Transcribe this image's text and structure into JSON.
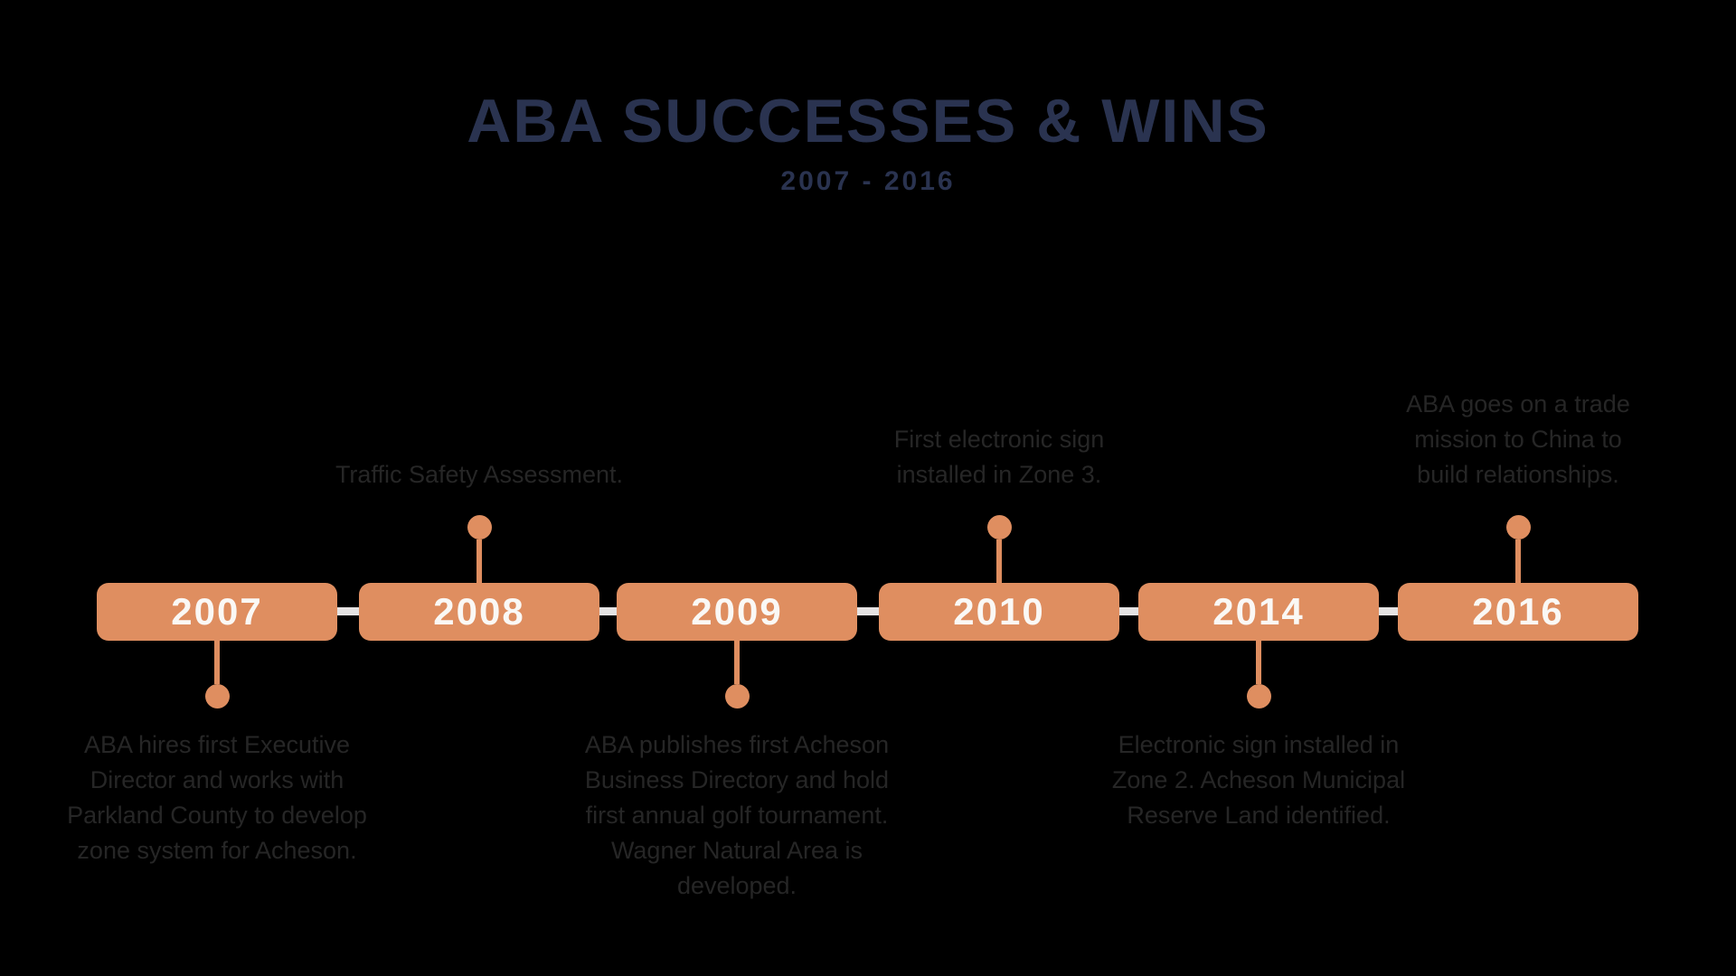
{
  "colors": {
    "background": "#000000",
    "title_navy": "#2a3350",
    "bar_orange": "#df8e60",
    "connector_gray": "#e5e3e3",
    "year_text": "#faf8f5",
    "description_text": "#262626"
  },
  "header": {
    "title": "ABA SUCCESSES & WINS",
    "subtitle": "2007 - 2016"
  },
  "timeline": {
    "milestones": [
      {
        "year": "2007",
        "side": "below",
        "description": "ABA hires first Executive\nDirector and works with\nParkland County to develop\nzone system for Acheson."
      },
      {
        "year": "2008",
        "side": "above",
        "description": "Traffic Safety Assessment."
      },
      {
        "year": "2009",
        "side": "below",
        "description": "ABA publishes first Acheson\nBusiness Directory and hold\nfirst annual golf tournament.\nWagner Natural Area is\ndeveloped."
      },
      {
        "year": "2010",
        "side": "above",
        "description": "First electronic sign\ninstalled in Zone 3."
      },
      {
        "year": "2014",
        "side": "below",
        "description": "Electronic sign installed in\nZone 2. Acheson Municipal\nReserve Land identified."
      },
      {
        "year": "2016",
        "side": "above",
        "description": "ABA goes on a trade\nmission to China to\nbuild relationships."
      }
    ]
  }
}
